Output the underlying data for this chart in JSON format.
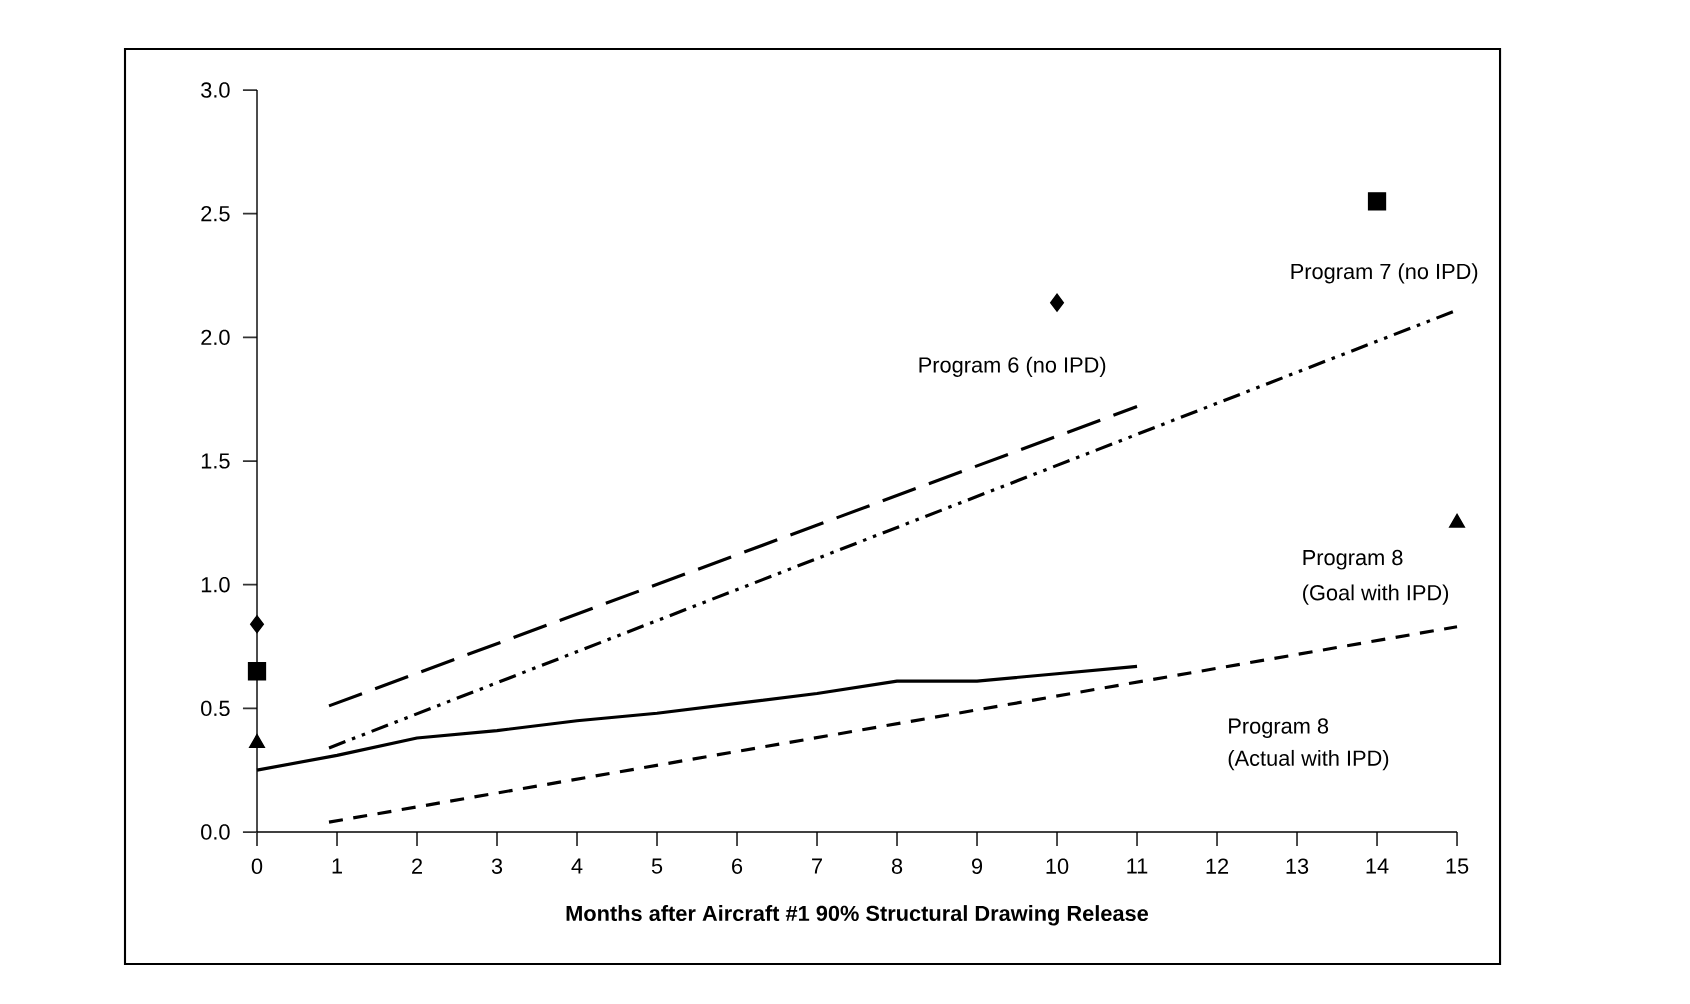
{
  "chart_data": {
    "type": "line",
    "xlabel": "Months after Aircraft #1 90% Structural Drawing Release",
    "xlim": [
      0,
      15
    ],
    "xticks": [
      0,
      1,
      2,
      3,
      4,
      5,
      6,
      7,
      8,
      9,
      10,
      11,
      12,
      13,
      14,
      15
    ],
    "ylim": [
      0,
      3
    ],
    "yticks": [
      {
        "value": 0,
        "label": "0.0"
      },
      {
        "value": 0.5,
        "label": "0.5"
      },
      {
        "value": 1,
        "label": "1.0"
      },
      {
        "value": 1.5,
        "label": "1.5"
      },
      {
        "value": 2,
        "label": "2.0"
      },
      {
        "value": 2.5,
        "label": "2.5"
      },
      {
        "value": 3,
        "label": "3.0"
      }
    ],
    "grid": false,
    "series": [
      {
        "type": "line",
        "color": "#000000",
        "line_style": "dashed",
        "marker": "none",
        "x": [
          0.9,
          11
        ],
        "values": [
          0.51,
          1.72
        ]
      },
      {
        "type": "line",
        "color": "#000000",
        "line_style": "dashdotted",
        "marker": "none",
        "x": [
          0.9,
          15
        ],
        "values": [
          0.34,
          2.11
        ]
      },
      {
        "type": "line",
        "color": "#000000",
        "line_style": "dotted",
        "marker": "none",
        "x": [
          0.9,
          15
        ],
        "values": [
          0.04,
          0.83
        ]
      },
      {
        "type": "line",
        "color": "#000000",
        "line_style": "solid",
        "marker": "none",
        "x": [
          0,
          1,
          2,
          3,
          4,
          5,
          6,
          7,
          8,
          9,
          10,
          11
        ],
        "values": [
          0.25,
          0.31,
          0.38,
          0.41,
          0.45,
          0.48,
          0.52,
          0.56,
          0.61,
          0.61,
          0.64,
          0.67
        ]
      },
      {
        "type": "scatter",
        "color": "#000000",
        "marker": "diamond",
        "x": [
          0,
          10
        ],
        "values": [
          0.84,
          2.14
        ]
      },
      {
        "type": "scatter",
        "color": "#000000",
        "marker": "square",
        "x": [
          0,
          14
        ],
        "values": [
          0.65,
          2.55
        ]
      },
      {
        "type": "scatter",
        "color": "#000000",
        "marker": "triangle",
        "x": [
          0,
          15
        ],
        "values": [
          0.36,
          1.25
        ]
      }
    ],
    "annotations": [
      "Program 6 (no IPD)",
      "Program 7 (no IPD)",
      "Program 8",
      "(Goal with IPD)",
      "Program 8",
      "(Actual with IPD)"
    ]
  }
}
